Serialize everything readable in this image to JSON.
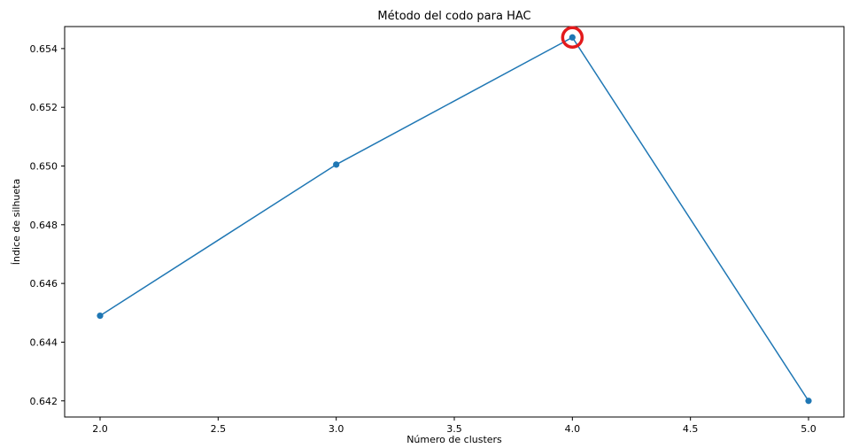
{
  "chart_data": {
    "type": "line",
    "title": "Método del codo para  HAC",
    "xlabel": "Número de clusters",
    "ylabel": "Índice de silhueta",
    "x": [
      2,
      3,
      4,
      5
    ],
    "series": [
      {
        "values": [
          0.6449,
          0.65005,
          0.65438,
          0.642
        ]
      }
    ],
    "xlim": [
      1.85,
      5.15
    ],
    "ylim": [
      0.64145,
      0.65475
    ],
    "xticks": [
      2.0,
      2.5,
      3.0,
      3.5,
      4.0,
      4.5,
      5.0
    ],
    "xtick_labels": [
      "2.0",
      "2.5",
      "3.0",
      "3.5",
      "4.0",
      "4.5",
      "5.0"
    ],
    "yticks": [
      0.642,
      0.644,
      0.646,
      0.648,
      0.65,
      0.652,
      0.654
    ],
    "ytick_labels": [
      "0.642",
      "0.644",
      "0.646",
      "0.648",
      "0.650",
      "0.652",
      "0.654"
    ],
    "grid": false,
    "highlight": {
      "x": 4,
      "y": 0.65438,
      "color": "#e31a1c"
    },
    "colors": {
      "line": "#1f77b4",
      "axes": "#000000"
    }
  }
}
